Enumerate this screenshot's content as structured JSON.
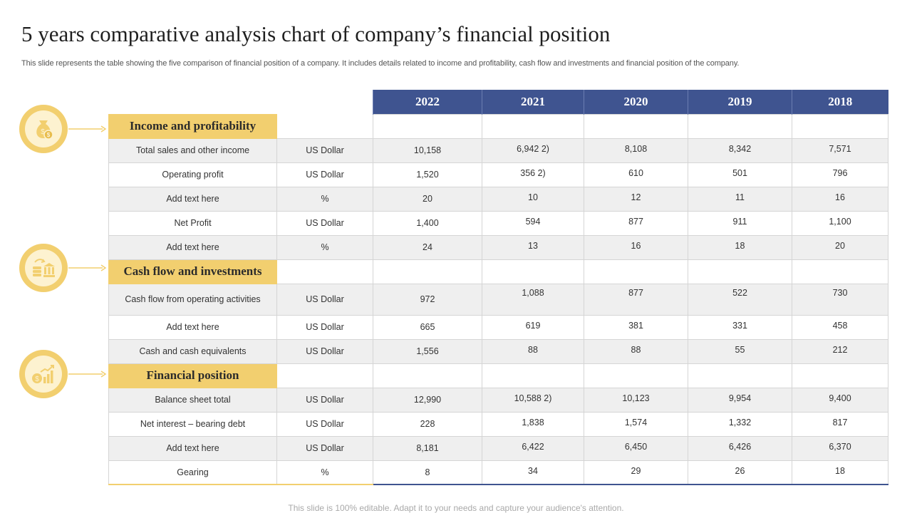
{
  "title": "5 years comparative analysis chart of company’s financial position",
  "subtitle": "This slide represents the table showing the five comparison of financial position of a company. It includes details related to income and profitability, cash flow and investments and financial position of the company.",
  "footer": "This slide is 100% editable. Adapt it to your needs and capture your audience's attention.",
  "colors": {
    "header_blue": "#3f5490",
    "section_gold": "#f2cf6f",
    "alt_row": "#efefef"
  },
  "table": {
    "years": [
      "2022",
      "2021",
      "2020",
      "2019",
      "2018"
    ],
    "sections": [
      {
        "label": "Income and profitability",
        "icon": "money-bag-icon",
        "rows": [
          {
            "label": "Total sales and other income",
            "unit": "US Dollar",
            "values": [
              "10,158",
              "6,942  2)",
              "8,108",
              "8,342",
              "7,571"
            ]
          },
          {
            "label": "Operating  profit",
            "unit": "US Dollar",
            "values": [
              "1,520",
              "356  2)",
              "610",
              "501",
              "796"
            ]
          },
          {
            "label": "Add text here",
            "unit": "%",
            "values": [
              "20",
              "10",
              "12",
              "11",
              "16"
            ]
          },
          {
            "label": "Net Profit",
            "unit": "US Dollar",
            "values": [
              "1,400",
              "594",
              "877",
              "911",
              "1,100"
            ]
          },
          {
            "label": "Add text here",
            "unit": "%",
            "values": [
              "24",
              "13",
              "16",
              "18",
              "20"
            ]
          }
        ]
      },
      {
        "label": "Cash flow and investments",
        "icon": "coins-bank-icon",
        "rows": [
          {
            "label": "Cash flow from operating activities",
            "unit": "US Dollar",
            "values": [
              "972",
              "1,088",
              "877",
              "522",
              "730"
            ]
          },
          {
            "label": "Add text here",
            "unit": "US Dollar",
            "values": [
              "665",
              "619",
              "381",
              "331",
              "458"
            ]
          },
          {
            "label": "Cash and cash equivalents",
            "unit": "US Dollar",
            "values": [
              "1,556",
              "88",
              "88",
              "55",
              "212"
            ]
          }
        ]
      },
      {
        "label": "Financial position",
        "icon": "growth-chart-icon",
        "rows": [
          {
            "label": "Balance sheet total",
            "unit": "US Dollar",
            "values": [
              "12,990",
              "10,588  2)",
              "10,123",
              "9,954",
              "9,400"
            ]
          },
          {
            "label": "Net interest – bearing debt",
            "unit": "US Dollar",
            "values": [
              "228",
              "1,838",
              "1,574",
              "1,332",
              "817"
            ]
          },
          {
            "label": "Add text here",
            "unit": "US Dollar",
            "values": [
              "8,181",
              "6,422",
              "6,450",
              "6,426",
              "6,370"
            ]
          },
          {
            "label": "Gearing",
            "unit": "%",
            "values": [
              "8",
              "34",
              "29",
              "26",
              "18"
            ]
          }
        ]
      }
    ]
  }
}
